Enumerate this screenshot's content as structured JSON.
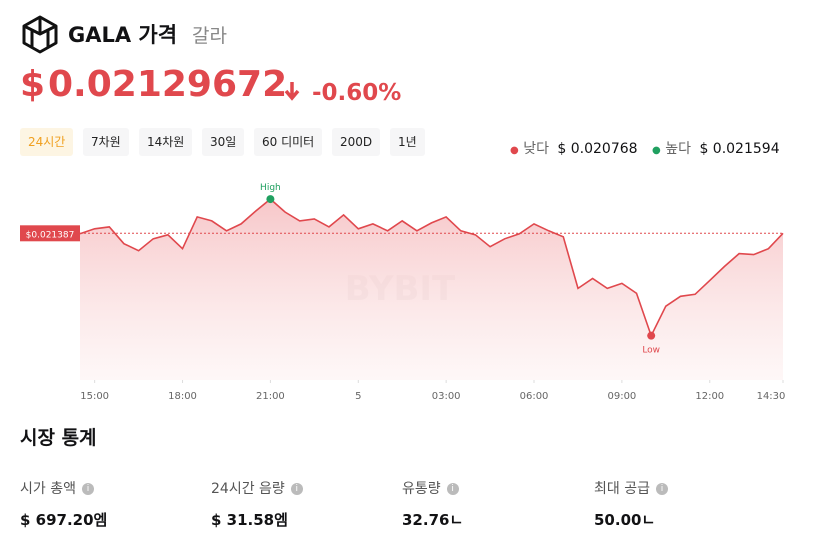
{
  "header": {
    "title": "GALA 가격",
    "subtitle": "갈라"
  },
  "price": {
    "symbol": "$",
    "value": "0.02129672",
    "change": "-0.60%"
  },
  "tabs": [
    "24시간",
    "7차원",
    "14차원",
    "30일",
    "60 디미터",
    "200D",
    "1년"
  ],
  "range": {
    "low_label": "낮다",
    "low": "$ 0.020768",
    "high_label": "높다",
    "high": "$ 0.021594"
  },
  "chart_data": {
    "type": "line",
    "color": "#e0484d",
    "x": [
      0,
      0.5,
      1,
      1.5,
      2,
      2.5,
      3,
      3.5,
      4,
      4.5,
      5,
      5.5,
      6,
      6.5,
      7,
      7.5,
      8,
      8.5,
      9,
      9.5,
      10,
      10.5,
      11,
      11.5,
      12,
      12.5,
      13,
      13.5,
      14,
      14.5,
      15,
      15.5,
      16,
      16.5,
      17,
      17.5,
      18,
      18.5,
      19,
      19.5,
      20,
      20.5,
      21,
      21.5,
      22,
      22.5,
      23,
      23.5,
      24
    ],
    "values": [
      0.021384,
      0.021414,
      0.021426,
      0.021324,
      0.021282,
      0.021354,
      0.021378,
      0.021294,
      0.021486,
      0.021462,
      0.021402,
      0.021444,
      0.021522,
      0.021594,
      0.021516,
      0.021462,
      0.021474,
      0.021426,
      0.021498,
      0.021414,
      0.021444,
      0.021402,
      0.021462,
      0.021402,
      0.02145,
      0.021486,
      0.021402,
      0.021378,
      0.021306,
      0.021354,
      0.021384,
      0.021444,
      0.021402,
      0.021366,
      0.021054,
      0.021114,
      0.021054,
      0.021084,
      0.021024,
      0.020768,
      0.020946,
      0.021006,
      0.021018,
      0.021102,
      0.021186,
      0.021264,
      0.021258,
      0.021294,
      0.021387
    ],
    "xlim": [
      0,
      24
    ],
    "ylim": [
      0.0205,
      0.0218
    ],
    "xticks": [
      {
        "value": 0.5,
        "label": "15:00"
      },
      {
        "value": 3.5,
        "label": "18:00"
      },
      {
        "value": 6.5,
        "label": "21:00"
      },
      {
        "value": 9.5,
        "label": "5"
      },
      {
        "value": 12.5,
        "label": "03:00"
      },
      {
        "value": 15.5,
        "label": "06:00"
      },
      {
        "value": 18.5,
        "label": "09:00"
      },
      {
        "value": 21.5,
        "label": "12:00"
      },
      {
        "value": 24,
        "label": "14:30"
      }
    ],
    "reference": {
      "value": 0.021387,
      "label": "$0.021387"
    },
    "high_label": "High",
    "low_label": "Low",
    "watermark": "BYBIT"
  },
  "stats": {
    "title": "시장 통계",
    "items": [
      {
        "label": "시가 총액",
        "value": "$ 697.20엠"
      },
      {
        "label": "24시간 음량",
        "value": "$ 31.58엠"
      },
      {
        "label": "유통량",
        "value": "32.76ㄴ"
      },
      {
        "label": "최대 공급",
        "value": "50.00ㄴ"
      }
    ]
  }
}
